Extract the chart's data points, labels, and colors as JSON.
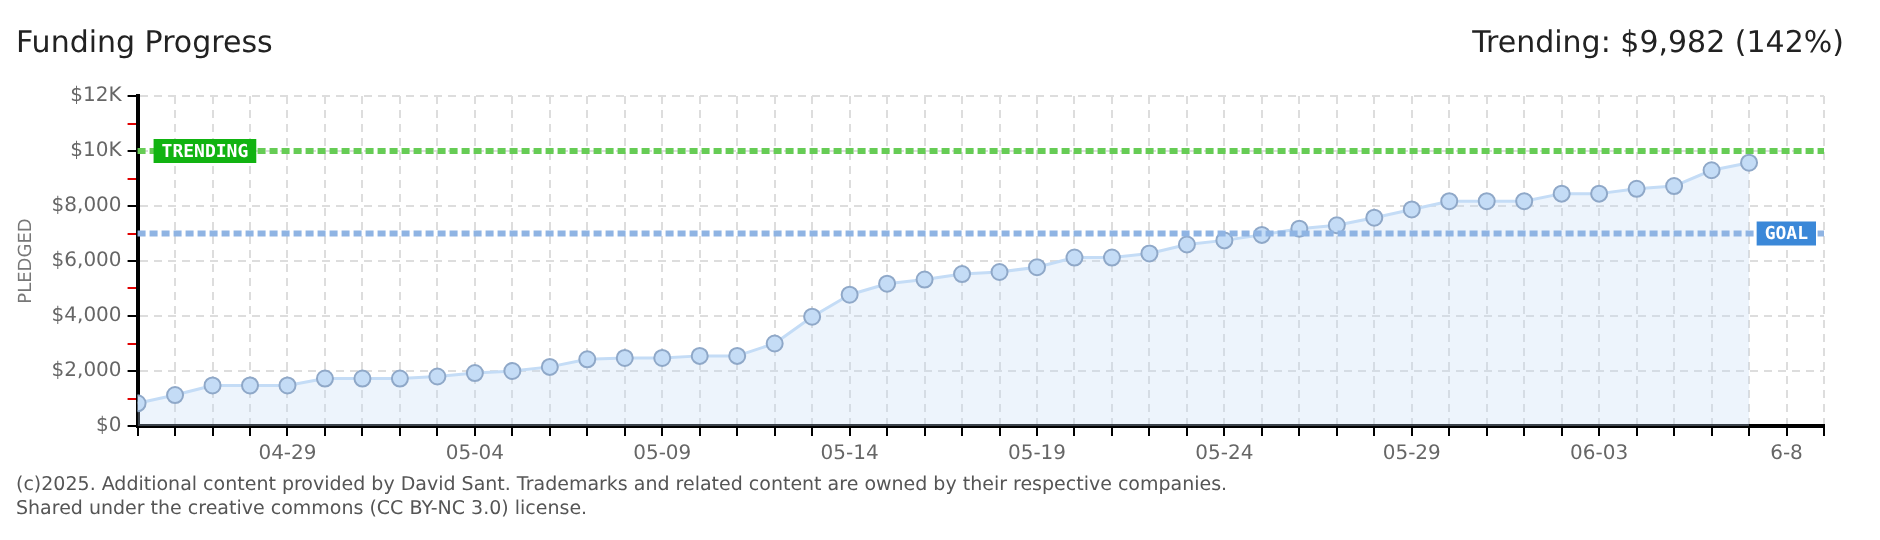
{
  "chart_data": {
    "type": "area",
    "title": "Funding Progress",
    "ylabel": "PLEDGED",
    "annotations": [
      "Trending: $9,982 (142%)",
      "(c)2025. Additional content provided by David Sant. Trademarks and related content are owned by their respective companies.",
      "Shared under the creative commons (CC BY-NC 3.0) license."
    ],
    "x": [
      "2025-04-25",
      "2025-04-26",
      "2025-04-27",
      "2025-04-28",
      "2025-04-29",
      "2025-04-30",
      "2025-05-01",
      "2025-05-02",
      "2025-05-03",
      "2025-05-04",
      "2025-05-05",
      "2025-05-06",
      "2025-05-07",
      "2025-05-08",
      "2025-05-09",
      "2025-05-10",
      "2025-05-11",
      "2025-05-12",
      "2025-05-13",
      "2025-05-14",
      "2025-05-15",
      "2025-05-16",
      "2025-05-17",
      "2025-05-18",
      "2025-05-19",
      "2025-05-20",
      "2025-05-21",
      "2025-05-22",
      "2025-05-23",
      "2025-05-24",
      "2025-05-25",
      "2025-05-26",
      "2025-05-27",
      "2025-05-28",
      "2025-05-29",
      "2025-05-30",
      "2025-05-31",
      "2025-06-01",
      "2025-06-02",
      "2025-06-03",
      "2025-06-04",
      "2025-06-05",
      "2025-06-06",
      "2025-06-07"
    ],
    "series": [
      {
        "color": "#c4dcf6",
        "values": [
          825,
          1125,
          1475,
          1475,
          1475,
          1725,
          1725,
          1725,
          1800,
          1925,
          2000,
          2150,
          2425,
          2475,
          2475,
          2550,
          2550,
          3000,
          3975,
          4775,
          5175,
          5325,
          5525,
          5600,
          5775,
          6125,
          6125,
          6275,
          6600,
          6750,
          6950,
          7175,
          7300,
          7575,
          7875,
          8175,
          8175,
          8175,
          8450,
          8450,
          8625,
          8725,
          9300,
          9575
        ]
      }
    ],
    "xlim": [
      "2025-04-25",
      "2025-06-09"
    ],
    "xticks": [
      {
        "value": "2025-04-25",
        "label": null
      },
      {
        "value": "2025-04-26",
        "label": null
      },
      {
        "value": "2025-04-27",
        "label": null
      },
      {
        "value": "2025-04-28",
        "label": null
      },
      {
        "value": "2025-04-29",
        "label": "04-29"
      },
      {
        "value": "2025-04-30",
        "label": null
      },
      {
        "value": "2025-05-01",
        "label": null
      },
      {
        "value": "2025-05-02",
        "label": null
      },
      {
        "value": "2025-05-03",
        "label": null
      },
      {
        "value": "2025-05-04",
        "label": "05-04"
      },
      {
        "value": "2025-05-05",
        "label": null
      },
      {
        "value": "2025-05-06",
        "label": null
      },
      {
        "value": "2025-05-07",
        "label": null
      },
      {
        "value": "2025-05-08",
        "label": null
      },
      {
        "value": "2025-05-09",
        "label": "05-09"
      },
      {
        "value": "2025-05-10",
        "label": null
      },
      {
        "value": "2025-05-11",
        "label": null
      },
      {
        "value": "2025-05-12",
        "label": null
      },
      {
        "value": "2025-05-13",
        "label": null
      },
      {
        "value": "2025-05-14",
        "label": "05-14"
      },
      {
        "value": "2025-05-15",
        "label": null
      },
      {
        "value": "2025-05-16",
        "label": null
      },
      {
        "value": "2025-05-17",
        "label": null
      },
      {
        "value": "2025-05-18",
        "label": null
      },
      {
        "value": "2025-05-19",
        "label": "05-19"
      },
      {
        "value": "2025-05-20",
        "label": null
      },
      {
        "value": "2025-05-21",
        "label": null
      },
      {
        "value": "2025-05-22",
        "label": null
      },
      {
        "value": "2025-05-23",
        "label": null
      },
      {
        "value": "2025-05-24",
        "label": "05-24"
      },
      {
        "value": "2025-05-25",
        "label": null
      },
      {
        "value": "2025-05-26",
        "label": null
      },
      {
        "value": "2025-05-27",
        "label": null
      },
      {
        "value": "2025-05-28",
        "label": null
      },
      {
        "value": "2025-05-29",
        "label": "05-29"
      },
      {
        "value": "2025-05-30",
        "label": null
      },
      {
        "value": "2025-05-31",
        "label": null
      },
      {
        "value": "2025-06-01",
        "label": null
      },
      {
        "value": "2025-06-02",
        "label": null
      },
      {
        "value": "2025-06-03",
        "label": "06-03"
      },
      {
        "value": "2025-06-04",
        "label": null
      },
      {
        "value": "2025-06-05",
        "label": null
      },
      {
        "value": "2025-06-06",
        "label": null
      },
      {
        "value": "2025-06-07",
        "label": null
      },
      {
        "value": "2025-06-08",
        "label": "6-8"
      },
      {
        "value": "2025-06-09",
        "label": null
      }
    ],
    "ylim": [
      0,
      12000
    ],
    "yticks": [
      {
        "value": 0,
        "label": "$0"
      },
      {
        "value": 1000,
        "label": null
      },
      {
        "value": 2000,
        "label": "$2,000"
      },
      {
        "value": 3000,
        "label": null
      },
      {
        "value": 4000,
        "label": "$4,000"
      },
      {
        "value": 5000,
        "label": null
      },
      {
        "value": 6000,
        "label": "$6,000"
      },
      {
        "value": 7000,
        "label": null
      },
      {
        "value": 8000,
        "label": "$8,000"
      },
      {
        "value": 9000,
        "label": null
      },
      {
        "value": 10000,
        "label": "$10K"
      },
      {
        "value": 11000,
        "label": null
      },
      {
        "value": 12000,
        "label": "$12K"
      }
    ],
    "ref_lines": [
      {
        "axis": "y",
        "value": 10000,
        "label": "TRENDING",
        "color": "#66cc55",
        "line_style": "dashed"
      },
      {
        "axis": "y",
        "value": 7000,
        "label": "GOAL",
        "color": "#8fb4e3",
        "line_style": "dashed"
      }
    ],
    "grid": true,
    "legend": false,
    "marker": "circle",
    "line_style": "solid"
  }
}
